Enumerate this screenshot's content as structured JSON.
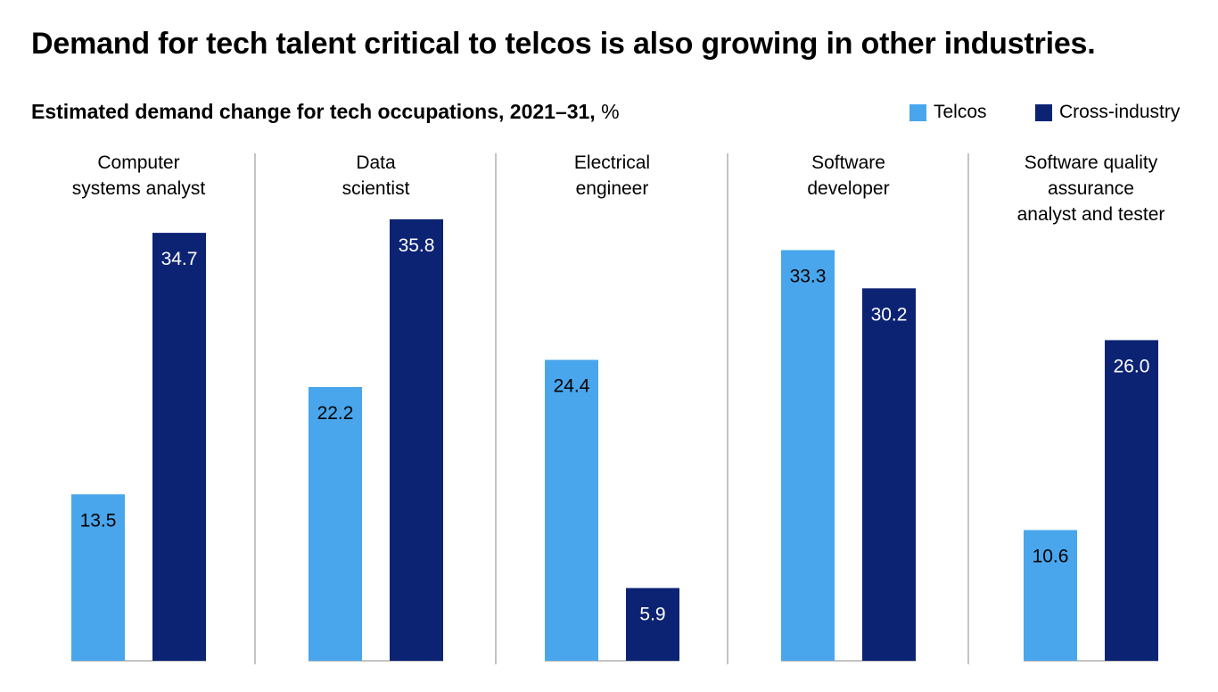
{
  "title": "Demand for tech talent critical to telcos is also growing in other industries.",
  "subtitle": {
    "main": "Estimated demand change for tech occupations, 2021–31,",
    "unit": " %"
  },
  "legend": [
    {
      "label": "Telcos",
      "color": "#49A6EC"
    },
    {
      "label": "Cross-industry",
      "color": "#0C2374"
    }
  ],
  "chart_data": {
    "type": "bar",
    "title": "Estimated demand change for tech occupations, 2021–31, %",
    "categories": [
      "Computer systems analyst",
      "Data scientist",
      "Electrical engineer",
      "Software developer",
      "Software quality assurance analyst and tester"
    ],
    "category_lines": [
      [
        "Computer",
        "systems analyst"
      ],
      [
        "Data",
        "scientist"
      ],
      [
        "Electrical",
        "engineer"
      ],
      [
        "Software",
        "developer"
      ],
      [
        "Software quality",
        "assurance",
        "analyst and tester"
      ]
    ],
    "series": [
      {
        "name": "Telcos",
        "values": [
          13.5,
          22.2,
          24.4,
          33.3,
          10.6
        ],
        "labels": [
          "13.5",
          "22.2",
          "24.4",
          "33.3",
          "10.6"
        ]
      },
      {
        "name": "Cross-industry",
        "values": [
          34.7,
          35.8,
          5.9,
          30.2,
          26.0
        ],
        "labels": [
          "34.7",
          "35.8",
          "5.9",
          "30.2",
          "26.0"
        ]
      }
    ],
    "ylim": [
      0,
      36
    ],
    "grid": false,
    "legend_position": "top-right"
  }
}
